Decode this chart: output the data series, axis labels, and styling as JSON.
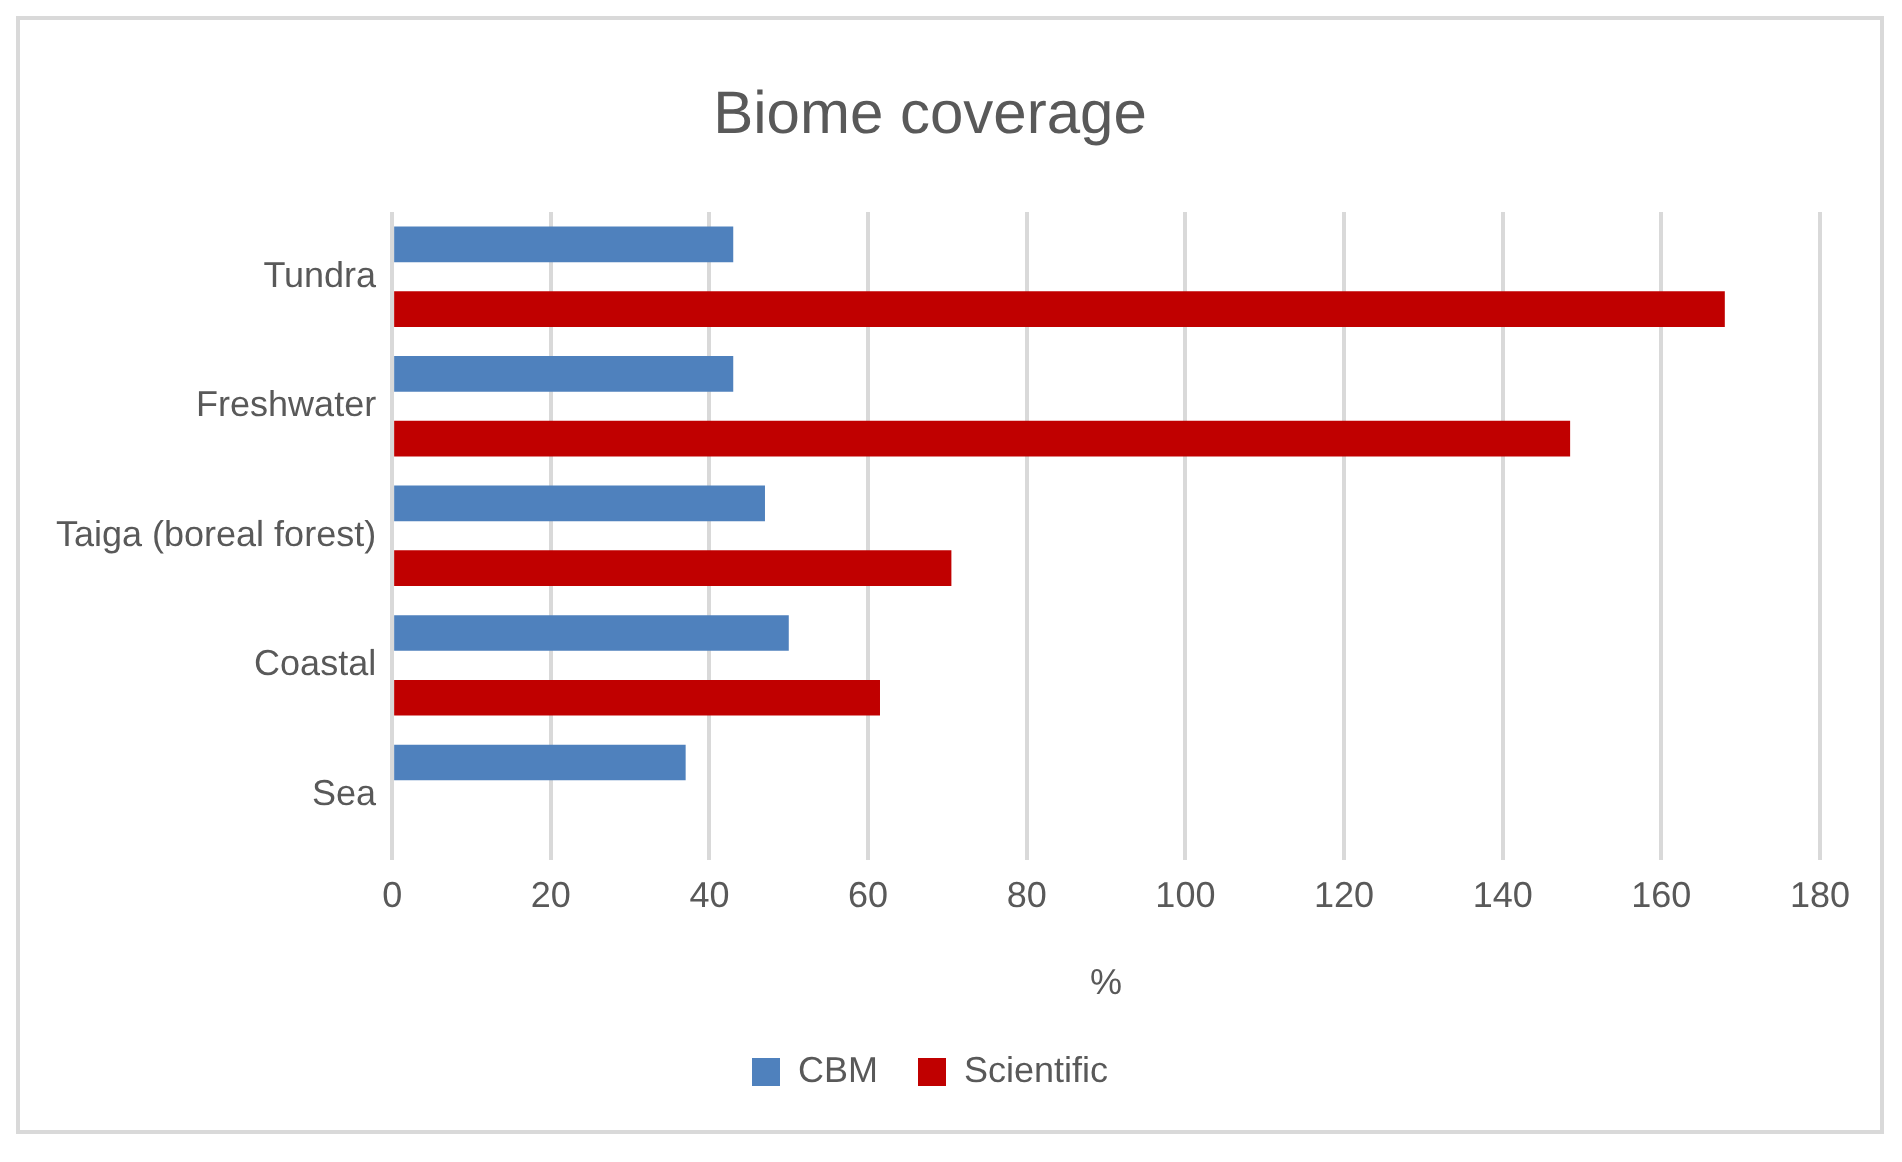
{
  "chart_data": {
    "type": "bar",
    "orientation": "horizontal",
    "title": "Biome coverage",
    "xlabel": "%",
    "categories": [
      "Tundra",
      "Freshwater",
      "Taiga (boreal forest)",
      "Coastal",
      "Sea"
    ],
    "series": [
      {
        "name": "CBM",
        "color": "#4f81bd",
        "values": [
          43,
          43,
          47,
          50,
          37
        ]
      },
      {
        "name": "Scientific",
        "color": "#c00000",
        "values": [
          168,
          148.5,
          70.5,
          61.5,
          null
        ]
      }
    ],
    "xlim": [
      0,
      180
    ],
    "xticks": [
      0,
      20,
      40,
      60,
      80,
      100,
      120,
      140,
      160,
      180
    ],
    "grid": "x",
    "legend": "bottom"
  }
}
